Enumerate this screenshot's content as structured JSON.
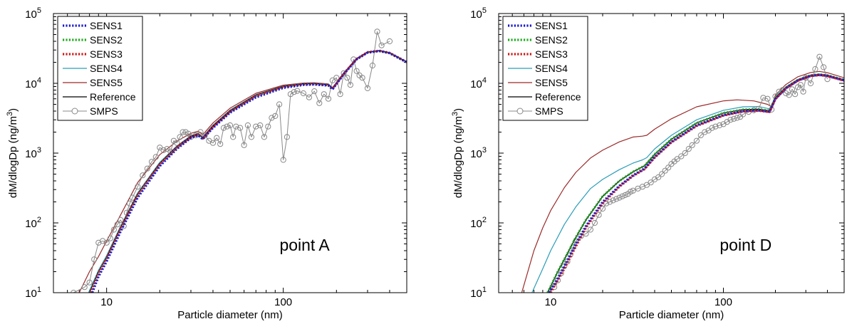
{
  "chart_data": [
    {
      "type": "line",
      "annotation": "point A",
      "xlabel": "Particle diameter (nm)",
      "ylabel": "dM/dlogDp (ng/m",
      "ylabel_sup": "3",
      "xscale": "log",
      "yscale": "log",
      "xlim": [
        5,
        500
      ],
      "ylim": [
        10,
        100000
      ],
      "xticks": [
        10,
        100
      ],
      "xtick_labels": [
        "10",
        "100"
      ],
      "yticks": [
        10,
        100,
        1000,
        10000,
        100000
      ],
      "ytick_labels": [
        {
          "base": "10",
          "exp": "1"
        },
        {
          "base": "10",
          "exp": "2"
        },
        {
          "base": "10",
          "exp": "3"
        },
        {
          "base": "10",
          "exp": "4"
        },
        {
          "base": "10",
          "exp": "5"
        }
      ],
      "grid": false,
      "legend_position": "top-left",
      "series": [
        {
          "name": "SENS1",
          "color": "#1a1acc",
          "style": "dotted",
          "width": 3.2,
          "x": [
            8.3,
            9,
            10,
            12,
            15,
            20,
            25,
            30,
            33,
            35,
            40,
            50,
            70,
            100,
            130,
            150,
            180,
            190,
            220,
            260,
            300,
            350,
            400,
            500
          ],
          "y": [
            10,
            17,
            28,
            75,
            230,
            650,
            1150,
            1650,
            1800,
            1580,
            2300,
            3800,
            6300,
            8600,
            9500,
            9600,
            9300,
            8200,
            13500,
            22000,
            27500,
            29000,
            27000,
            20000
          ]
        },
        {
          "name": "SENS2",
          "color": "#22aa22",
          "style": "dotted",
          "width": 3.2,
          "x": [
            8.1,
            9,
            10,
            12,
            15,
            20,
            25,
            30,
            33,
            35,
            40,
            50,
            70,
            100,
            130,
            150,
            180,
            190,
            220,
            260,
            300,
            350,
            400,
            500
          ],
          "y": [
            10,
            19,
            31,
            82,
            250,
            690,
            1200,
            1700,
            1850,
            1620,
            2400,
            3950,
            6600,
            8900,
            9700,
            9800,
            9400,
            8300,
            13700,
            22300,
            27800,
            29200,
            27200,
            20100
          ]
        },
        {
          "name": "SENS3",
          "color": "#cc1a1a",
          "style": "dotted",
          "width": 3.2,
          "x": [
            8.1,
            9,
            10,
            12,
            15,
            20,
            25,
            30,
            33,
            35,
            40,
            50,
            70,
            100,
            130,
            150,
            180,
            190,
            220,
            260,
            300,
            350,
            400,
            500
          ],
          "y": [
            10,
            19,
            31,
            83,
            252,
            695,
            1210,
            1710,
            1860,
            1630,
            2420,
            3980,
            6650,
            8950,
            9750,
            9850,
            9450,
            8350,
            13800,
            22400,
            27900,
            29300,
            27300,
            20200
          ]
        },
        {
          "name": "SENS4",
          "color": "#2a9db8",
          "style": "solid",
          "width": 1.2,
          "x": [
            7.9,
            9,
            10,
            12,
            15,
            20,
            25,
            30,
            33,
            35,
            40,
            50,
            70,
            100,
            130,
            150,
            180,
            190,
            220,
            260,
            300,
            350,
            400,
            500
          ],
          "y": [
            10,
            21,
            34,
            90,
            270,
            740,
            1270,
            1780,
            1930,
            1700,
            2520,
            4150,
            6900,
            9200,
            10000,
            10100,
            9700,
            8600,
            14000,
            22600,
            28100,
            29400,
            27400,
            20300
          ]
        },
        {
          "name": "SENS5",
          "color": "#9b2a2a",
          "style": "solid",
          "width": 1.2,
          "x": [
            7,
            8,
            9,
            10,
            12,
            15,
            20,
            25,
            30,
            33,
            35,
            40,
            50,
            70,
            100,
            130,
            150,
            180,
            190,
            220,
            260,
            300,
            350,
            400,
            500
          ],
          "y": [
            10,
            20,
            33,
            55,
            130,
            380,
            950,
            1480,
            1920,
            2060,
            1830,
            2700,
            4400,
            7200,
            9400,
            10100,
            10200,
            9800,
            8700,
            14100,
            22700,
            28200,
            29400,
            27400,
            20300
          ]
        },
        {
          "name": "Reference",
          "color": "#000000",
          "style": "solid",
          "width": 1.2,
          "x": [
            8,
            9,
            10,
            12,
            15,
            20,
            25,
            30,
            33,
            35,
            40,
            50,
            70,
            100,
            130,
            150,
            180,
            190,
            220,
            260,
            300,
            350,
            400,
            500
          ],
          "y": [
            10,
            20,
            32,
            86,
            260,
            715,
            1240,
            1740,
            1890,
            1660,
            2460,
            4050,
            6750,
            9050,
            9850,
            9950,
            9550,
            8450,
            13900,
            22500,
            28000,
            29300,
            27300,
            20200
          ]
        },
        {
          "name": "SMPS",
          "color": "#888888",
          "style": "solid-markers",
          "width": 1,
          "x": [
            6.5,
            7.5,
            8,
            8.5,
            9,
            9.5,
            10,
            10.5,
            11,
            11.5,
            12,
            12.5,
            13,
            13.5,
            14,
            15,
            16,
            17,
            18,
            19,
            20,
            21,
            22,
            23,
            24,
            25,
            26,
            27,
            28,
            29,
            30,
            32,
            34,
            36,
            38,
            40,
            42,
            44,
            46,
            48,
            50,
            52,
            54,
            57,
            60,
            63,
            66,
            70,
            74,
            78,
            82,
            86,
            90,
            95,
            100,
            105,
            110,
            115,
            120,
            130,
            140,
            150,
            160,
            170,
            180,
            190,
            200,
            210,
            220,
            230,
            240,
            250,
            260,
            270,
            280,
            300,
            320,
            340,
            360,
            400
          ],
          "y": [
            10,
            12,
            14,
            30,
            52,
            55,
            52,
            60,
            80,
            95,
            110,
            90,
            140,
            190,
            230,
            330,
            480,
            600,
            750,
            880,
            1200,
            1100,
            1150,
            1050,
            1500,
            1400,
            1700,
            2000,
            2000,
            1900,
            1700,
            1800,
            2000,
            1800,
            1500,
            1400,
            1650,
            1350,
            2300,
            2400,
            2500,
            1700,
            2400,
            2300,
            1300,
            2500,
            1700,
            2400,
            2500,
            1700,
            2400,
            3200,
            3400,
            5000,
            800,
            1700,
            7000,
            7500,
            7800,
            7200,
            6300,
            7700,
            5200,
            7000,
            6000,
            11000,
            12000,
            7000,
            14000,
            12000,
            9500,
            22000,
            15000,
            13000,
            12000,
            8500,
            18000,
            55000,
            35000,
            40000
          ]
        }
      ]
    },
    {
      "type": "line",
      "annotation": "point D",
      "xlabel": "Particle diameter (nm)",
      "ylabel": "dM/dlogDp (ng/m",
      "ylabel_sup": "3",
      "xscale": "log",
      "yscale": "log",
      "xlim": [
        5,
        500
      ],
      "ylim": [
        10,
        100000
      ],
      "xticks": [
        10,
        100
      ],
      "xtick_labels": [
        "10",
        "100"
      ],
      "yticks": [
        10,
        100,
        1000,
        10000,
        100000
      ],
      "ytick_labels": [
        {
          "base": "10",
          "exp": "1"
        },
        {
          "base": "10",
          "exp": "2"
        },
        {
          "base": "10",
          "exp": "3"
        },
        {
          "base": "10",
          "exp": "4"
        },
        {
          "base": "10",
          "exp": "5"
        }
      ],
      "grid": false,
      "legend_position": "top-left",
      "series": [
        {
          "name": "SENS1",
          "color": "#1a1acc",
          "style": "dotted",
          "width": 3.2,
          "x": [
            9.8,
            11,
            12,
            14,
            16,
            20,
            25,
            30,
            35,
            40,
            50,
            70,
            100,
            130,
            160,
            185,
            200,
            230,
            270,
            320,
            360,
            400,
            500
          ],
          "y": [
            10,
            16,
            24,
            50,
            90,
            200,
            340,
            480,
            600,
            880,
            1450,
            2500,
            3500,
            4000,
            4100,
            3900,
            6000,
            8500,
            11000,
            12800,
            13200,
            12800,
            11000
          ]
        },
        {
          "name": "SENS2",
          "color": "#22aa22",
          "style": "dotted",
          "width": 3.2,
          "x": [
            9.6,
            11,
            12,
            14,
            16,
            20,
            25,
            30,
            35,
            40,
            50,
            70,
            100,
            130,
            160,
            185,
            200,
            230,
            270,
            320,
            360,
            400,
            500
          ],
          "y": [
            10,
            20,
            30,
            62,
            110,
            240,
            400,
            540,
            660,
            960,
            1580,
            2700,
            3750,
            4200,
            4250,
            4050,
            6200,
            8700,
            11200,
            13000,
            13400,
            13000,
            11200
          ]
        },
        {
          "name": "SENS3",
          "color": "#cc1a1a",
          "style": "dotted",
          "width": 3.2,
          "x": [
            10,
            11,
            12,
            14,
            16,
            20,
            25,
            30,
            35,
            40,
            50,
            70,
            100,
            130,
            160,
            185,
            200,
            230,
            270,
            320,
            360,
            400,
            500
          ],
          "y": [
            10,
            15,
            22,
            46,
            85,
            190,
            330,
            470,
            590,
            860,
            1420,
            2450,
            3450,
            3950,
            4050,
            3880,
            5950,
            8450,
            10900,
            12700,
            13100,
            12700,
            10900
          ]
        },
        {
          "name": "SENS4",
          "color": "#2a9db8",
          "style": "solid",
          "width": 1.2,
          "x": [
            7.8,
            9,
            10,
            12,
            14,
            17,
            20,
            25,
            30,
            34,
            36,
            40,
            50,
            70,
            100,
            130,
            160,
            185,
            200,
            230,
            270,
            320,
            360,
            400,
            500
          ],
          "y": [
            10,
            22,
            40,
            95,
            170,
            310,
            420,
            580,
            720,
            800,
            860,
            1150,
            1800,
            3000,
            4100,
            4600,
            4650,
            4300,
            6400,
            8900,
            11400,
            13200,
            13600,
            13200,
            11300
          ]
        },
        {
          "name": "SENS5",
          "color": "#9b2a2a",
          "style": "solid",
          "width": 1.2,
          "x": [
            6.8,
            8,
            9,
            10,
            12,
            14,
            17,
            20,
            25,
            30,
            34,
            36,
            40,
            50,
            70,
            100,
            120,
            150,
            180,
            190,
            200,
            230,
            270,
            320,
            360,
            400,
            500
          ],
          "y": [
            10,
            40,
            85,
            150,
            320,
            530,
            850,
            1100,
            1450,
            1700,
            1750,
            1800,
            2200,
            3100,
            4600,
            5600,
            5800,
            5600,
            5000,
            4600,
            6800,
            9600,
            12400,
            14300,
            14800,
            14200,
            12000
          ]
        },
        {
          "name": "Reference",
          "color": "#000000",
          "style": "solid",
          "width": 1.2,
          "x": [
            9.6,
            11,
            12,
            14,
            16,
            20,
            25,
            30,
            35,
            40,
            50,
            70,
            100,
            130,
            160,
            185,
            200,
            230,
            270,
            320,
            360,
            400,
            500
          ],
          "y": [
            10,
            20,
            30,
            62,
            110,
            240,
            400,
            540,
            660,
            960,
            1580,
            2700,
            3750,
            4200,
            4250,
            4050,
            6200,
            8700,
            11200,
            13000,
            13400,
            13000,
            11200
          ]
        },
        {
          "name": "SMPS",
          "color": "#888888",
          "style": "solid-markers",
          "width": 1,
          "x": [
            10.5,
            11,
            11.5,
            12,
            12.5,
            13,
            13.5,
            14,
            15,
            16,
            17,
            18,
            19,
            20,
            21,
            22,
            23,
            24,
            25,
            26,
            27,
            28,
            29,
            30,
            32,
            34,
            36,
            38,
            40,
            42,
            44,
            46,
            48,
            50,
            52,
            54,
            57,
            60,
            63,
            66,
            70,
            74,
            78,
            82,
            86,
            90,
            95,
            100,
            105,
            110,
            115,
            120,
            125,
            130,
            140,
            150,
            160,
            170,
            180,
            190,
            200,
            210,
            220,
            230,
            240,
            250,
            260,
            270,
            280,
            290,
            300,
            320,
            340,
            360,
            380,
            400
          ],
          "y": [
            12,
            15,
            19,
            24,
            28,
            35,
            45,
            55,
            65,
            70,
            80,
            100,
            130,
            160,
            190,
            200,
            210,
            220,
            230,
            240,
            250,
            260,
            280,
            290,
            310,
            330,
            350,
            380,
            420,
            450,
            500,
            560,
            620,
            700,
            760,
            820,
            900,
            1000,
            1150,
            1300,
            1500,
            1800,
            2000,
            2100,
            2300,
            2400,
            2500,
            2600,
            2800,
            3000,
            3100,
            3200,
            3300,
            3600,
            3900,
            4100,
            4300,
            6200,
            6000,
            4200,
            6500,
            7600,
            8000,
            7200,
            6800,
            8200,
            7000,
            8800,
            9500,
            7600,
            12000,
            10000,
            16000,
            24000,
            17000,
            11500
          ]
        }
      ]
    }
  ]
}
